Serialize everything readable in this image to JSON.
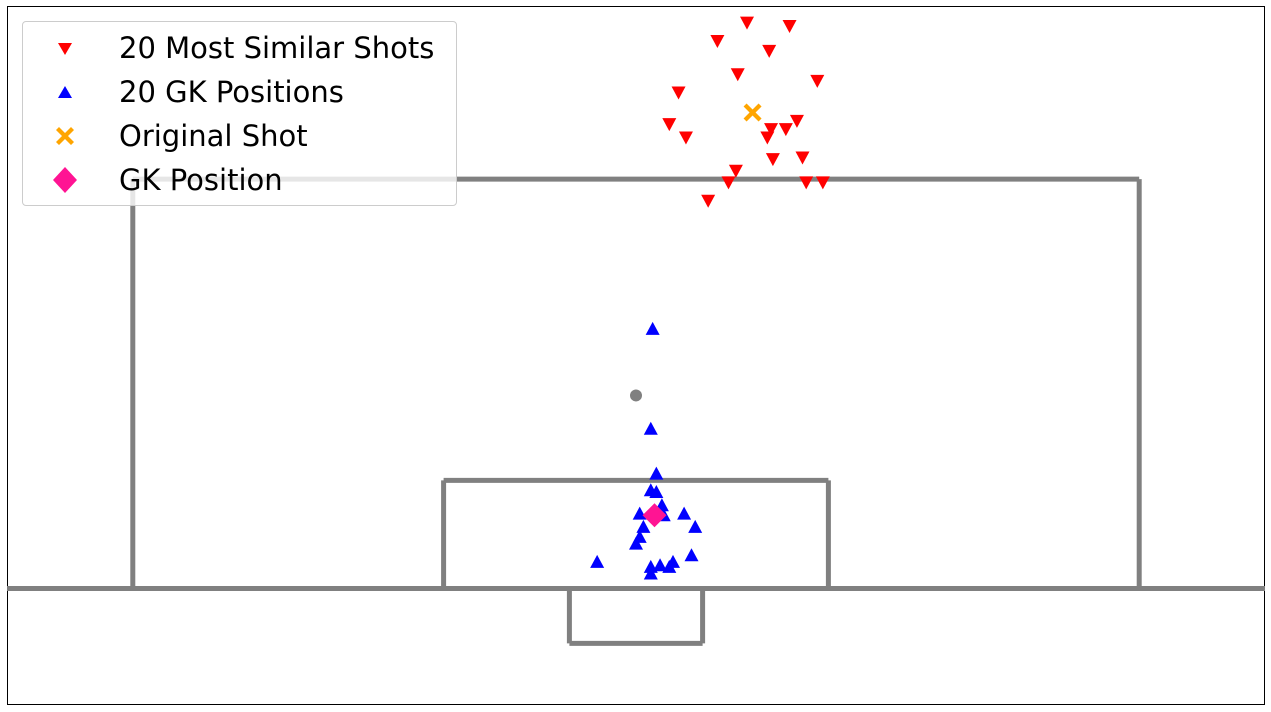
{
  "chart_data": {
    "type": "scatter",
    "title": "",
    "xlabel": "",
    "ylabel": "",
    "x_range": [
      0,
      68
    ],
    "y_range": [
      78,
      120
    ],
    "grid": false,
    "legend_position": "upper-left",
    "colors": {
      "pitch_lines": "#808080",
      "similar_shots": "#ff0000",
      "gk_positions": "#0000ff",
      "original_shot": "#ffa500",
      "gk_position": "#ff1493"
    },
    "series": [
      {
        "name": "20 Most Similar Shots",
        "marker": "triangle-down",
        "color": "#ff0000",
        "points": [
          {
            "x": 40.0,
            "y": 79.0
          },
          {
            "x": 42.3,
            "y": 79.2
          },
          {
            "x": 38.4,
            "y": 80.1
          },
          {
            "x": 41.2,
            "y": 80.7
          },
          {
            "x": 39.5,
            "y": 82.1
          },
          {
            "x": 43.8,
            "y": 82.5
          },
          {
            "x": 36.3,
            "y": 83.2
          },
          {
            "x": 42.7,
            "y": 84.9
          },
          {
            "x": 35.8,
            "y": 85.1
          },
          {
            "x": 41.3,
            "y": 85.4
          },
          {
            "x": 42.1,
            "y": 85.4
          },
          {
            "x": 36.7,
            "y": 85.9
          },
          {
            "x": 41.1,
            "y": 85.9
          },
          {
            "x": 43.0,
            "y": 87.1
          },
          {
            "x": 41.4,
            "y": 87.2
          },
          {
            "x": 39.4,
            "y": 87.9
          },
          {
            "x": 39.0,
            "y": 88.6
          },
          {
            "x": 43.2,
            "y": 88.6
          },
          {
            "x": 44.1,
            "y": 88.6
          },
          {
            "x": 37.9,
            "y": 89.7
          }
        ]
      },
      {
        "name": "20 GK Positions",
        "marker": "triangle-up",
        "color": "#0000ff",
        "points": [
          {
            "x": 34.9,
            "y": 97.4
          },
          {
            "x": 34.8,
            "y": 103.4
          },
          {
            "x": 35.1,
            "y": 106.1
          },
          {
            "x": 34.8,
            "y": 107.1
          },
          {
            "x": 35.1,
            "y": 107.2
          },
          {
            "x": 35.4,
            "y": 108.0
          },
          {
            "x": 34.2,
            "y": 108.5
          },
          {
            "x": 35.5,
            "y": 108.6
          },
          {
            "x": 36.6,
            "y": 108.5
          },
          {
            "x": 34.4,
            "y": 109.3
          },
          {
            "x": 37.2,
            "y": 109.3
          },
          {
            "x": 34.2,
            "y": 109.9
          },
          {
            "x": 34.0,
            "y": 110.3
          },
          {
            "x": 37.0,
            "y": 111.0
          },
          {
            "x": 31.9,
            "y": 111.4
          },
          {
            "x": 36.0,
            "y": 111.4
          },
          {
            "x": 34.8,
            "y": 111.7
          },
          {
            "x": 35.8,
            "y": 111.7
          },
          {
            "x": 34.8,
            "y": 112.1
          },
          {
            "x": 35.3,
            "y": 111.6
          }
        ]
      },
      {
        "name": "Original Shot",
        "marker": "x-filled",
        "color": "#ffa500",
        "points": [
          {
            "x": 40.3,
            "y": 84.4
          }
        ]
      },
      {
        "name": "GK Position",
        "marker": "diamond",
        "color": "#ff1493",
        "points": [
          {
            "x": 35.0,
            "y": 108.6
          }
        ]
      }
    ]
  }
}
